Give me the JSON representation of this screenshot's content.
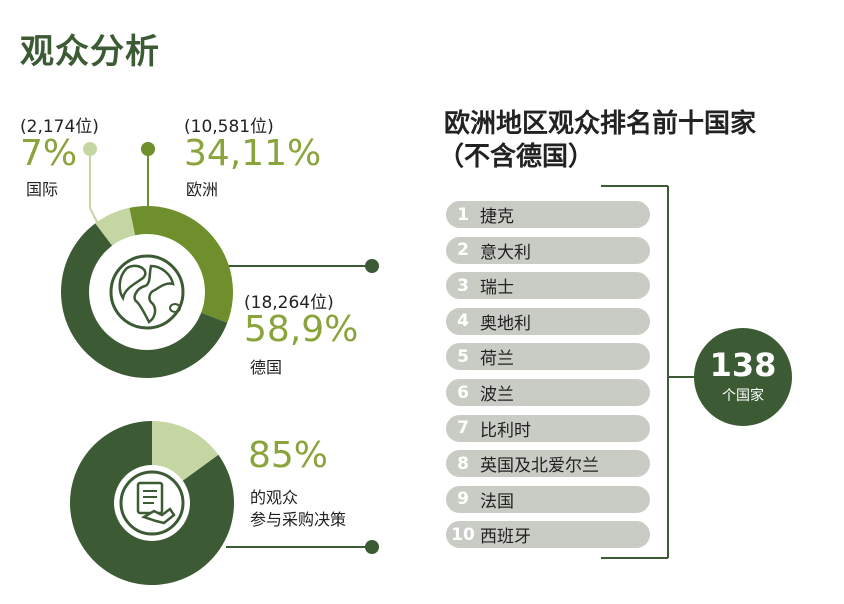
{
  "title": "观众分析",
  "colors": {
    "dark_green": "#3c5a34",
    "mid_green": "#6e8f2c",
    "light_green": "#c5d6a2",
    "accent_text": "#8aa43c",
    "pill_gray": "#c9ccc4"
  },
  "icons": {
    "donut1_center": "globe-icon",
    "donut2_center": "contract-handshake-icon"
  },
  "stats": {
    "international": {
      "count": "(2,174位)",
      "pct": "7%",
      "label": "国际"
    },
    "europe": {
      "count": "(10,581位)",
      "pct": "34,11%",
      "label": "欧洲"
    },
    "germany": {
      "count": "(18,264位)",
      "pct": "58,9%",
      "label": "德国"
    },
    "decision": {
      "pct": "85%",
      "label1": "的观众",
      "label2": "参与采购决策"
    }
  },
  "ranking": {
    "title1": "欧洲地区观众排名前十国家",
    "title2": "（不含德国）",
    "items": [
      {
        "num": "1",
        "name": "捷克"
      },
      {
        "num": "2",
        "name": "意大利"
      },
      {
        "num": "3",
        "name": "瑞士"
      },
      {
        "num": "4",
        "name": "奥地利"
      },
      {
        "num": "5",
        "name": "荷兰"
      },
      {
        "num": "6",
        "name": "波兰"
      },
      {
        "num": "7",
        "name": "比利时"
      },
      {
        "num": "8",
        "name": "英国及北爱尔兰"
      },
      {
        "num": "9",
        "name": "法国"
      },
      {
        "num": "10",
        "name": "西班牙"
      }
    ],
    "count_number": "138",
    "count_label": "个国家"
  },
  "chart_data": [
    {
      "type": "pie",
      "categories": [
        "国际",
        "欧洲",
        "德国"
      ],
      "values": [
        7,
        34.11,
        58.9
      ],
      "colors": [
        "#c5d6a2",
        "#6e8f2c",
        "#3c5a34"
      ]
    },
    {
      "type": "pie",
      "categories": [
        "的观众 参与采购决策",
        ""
      ],
      "values": [
        85,
        15
      ],
      "colors": [
        "#3c5a34",
        "#c5d6a2"
      ]
    }
  ]
}
